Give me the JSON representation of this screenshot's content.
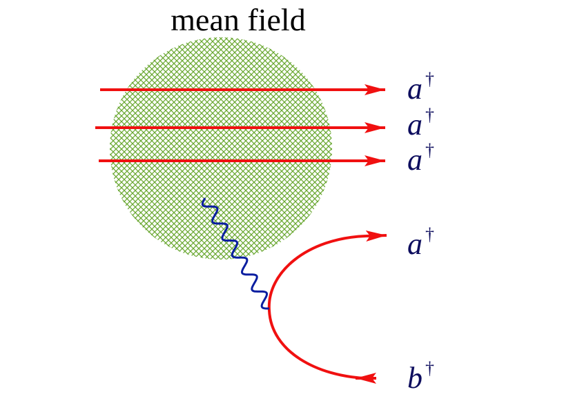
{
  "title": "mean field",
  "labels": [
    {
      "symbol": "a",
      "dagger": "†"
    },
    {
      "symbol": "a",
      "dagger": "†"
    },
    {
      "symbol": "a",
      "dagger": "†"
    },
    {
      "symbol": "a",
      "dagger": "†"
    },
    {
      "symbol": "b",
      "dagger": "†"
    }
  ]
}
